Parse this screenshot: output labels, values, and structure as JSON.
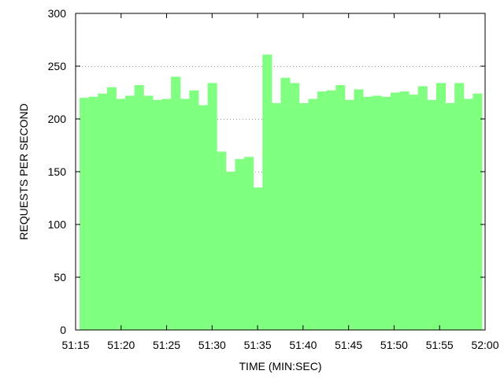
{
  "chart_data": {
    "type": "bar",
    "title": "",
    "xlabel": "TIME (MIN:SEC)",
    "ylabel": "REQUESTS PER SECOND",
    "ylim": [
      0,
      300
    ],
    "yticks": [
      0,
      50,
      100,
      150,
      200,
      250,
      300
    ],
    "xlim_seconds_after_51_00": [
      15,
      60
    ],
    "xtick_labels": [
      "51:15",
      "51:20",
      "51:25",
      "51:30",
      "51:35",
      "51:40",
      "51:45",
      "51:50",
      "51:55",
      "52:00"
    ],
    "grid": "horizontal dotted",
    "bar_color": "#80ff80",
    "series": [
      {
        "values": [
          220,
          221,
          224,
          230,
          219,
          222,
          232,
          222,
          218,
          219,
          240,
          219,
          227,
          213,
          234,
          169,
          150,
          162,
          164,
          135,
          261,
          215,
          239,
          234,
          215,
          219,
          226,
          227,
          232,
          218,
          228,
          221,
          222,
          221,
          225,
          226,
          223,
          231,
          218,
          234,
          215,
          234,
          219,
          224
        ]
      }
    ]
  }
}
